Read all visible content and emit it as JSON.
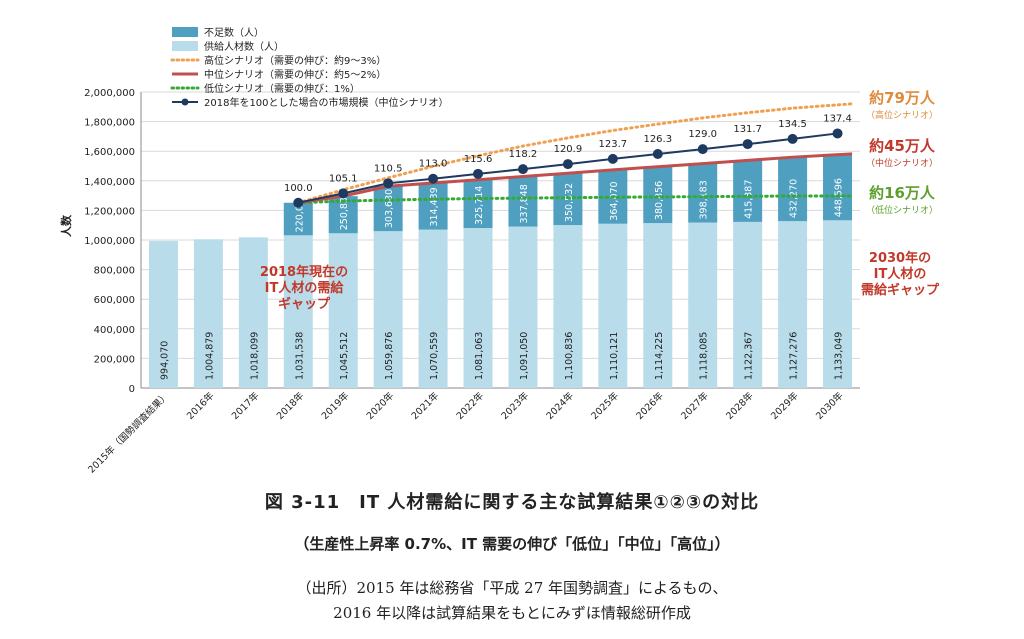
{
  "chart_data": {
    "type": "bar",
    "ylabel": "人数",
    "ylim": [
      0,
      2000000
    ],
    "yticks": [
      "0",
      "200,000",
      "400,000",
      "600,000",
      "800,000",
      "1,000,000",
      "1,200,000",
      "1,400,000",
      "1,600,000",
      "1,800,000",
      "2,000,000"
    ],
    "categories": [
      "2015年（国勢調査結果）",
      "2016年",
      "2017年",
      "2018年",
      "2019年",
      "2020年",
      "2021年",
      "2022年",
      "2023年",
      "2024年",
      "2025年",
      "2026年",
      "2027年",
      "2028年",
      "2029年",
      "2030年"
    ],
    "series": [
      {
        "name": "不足数（人）",
        "kind": "stacked-bar",
        "color": "#4f9fc0",
        "values": [
          null,
          null,
          null,
          220000,
          250835,
          303680,
          314439,
          325714,
          337848,
          350532,
          364070,
          380856,
          398183,
          415387,
          432270,
          448596
        ],
        "labels": [
          "",
          "",
          "",
          "220,000",
          "250,835",
          "303,680",
          "314,439",
          "325,714",
          "337,848",
          "350,532",
          "364,070",
          "380,856",
          "398,183",
          "415,387",
          "432,270",
          "448,596"
        ]
      },
      {
        "name": "供給人材数（人）",
        "kind": "stacked-bar",
        "color": "#b8dcea",
        "values": [
          994070,
          1004879,
          1018099,
          1031538,
          1045512,
          1059876,
          1070559,
          1081063,
          1091050,
          1100836,
          1110121,
          1114225,
          1118085,
          1122367,
          1127276,
          1133049
        ],
        "labels": [
          "994,070",
          "1,004,879",
          "1,018,099",
          "1,031,538",
          "1,045,512",
          "1,059,876",
          "1,070,559",
          "1,081,063",
          "1,091,050",
          "1,100,836",
          "1,110,121",
          "1,114,225",
          "1,118,085",
          "1,122,367",
          "1,127,276",
          "1,133,049"
        ]
      },
      {
        "name": "高位シナリオ（需要の伸び：約9～3%）",
        "kind": "line",
        "style": "dotted",
        "color": "#f0a050",
        "values": [
          null,
          null,
          null,
          1251538,
          1339000,
          1420000,
          1498000,
          1569000,
          1635000,
          1690000,
          1740000,
          1783000,
          1825000,
          1860000,
          1891000,
          1920000
        ]
      },
      {
        "name": "中位シナリオ（需要の伸び：約5～2%）",
        "kind": "line",
        "style": "solid",
        "color": "#c0504d",
        "values": [
          null,
          null,
          null,
          1251538,
          1296347,
          1363556,
          1384998,
          1406777,
          1428898,
          1451368,
          1474191,
          1495081,
          1516268,
          1537754,
          1559546,
          1581645
        ]
      },
      {
        "name": "低位シナリオ（需要の伸び：1%）",
        "kind": "line",
        "style": "dotted",
        "color": "#33aa33",
        "values": [
          null,
          null,
          null,
          1251538,
          1263000,
          1270000,
          1276000,
          1280000,
          1283000,
          1286000,
          1289000,
          1291000,
          1293000,
          1295000,
          1297000,
          1298000
        ]
      },
      {
        "name": "2018年を100とした場合の市場規模（中位シナリオ）",
        "kind": "line-marker",
        "color": "#1f3a60",
        "index_labels": [
          "",
          "",
          "",
          "100.0",
          "105.1",
          "110.5",
          "113.0",
          "115.6",
          "118.2",
          "120.9",
          "123.7",
          "126.3",
          "129.0",
          "131.7",
          "134.5",
          "137.4"
        ],
        "values": [
          null,
          null,
          null,
          1251538,
          1315000,
          1383000,
          1414000,
          1447000,
          1479000,
          1513000,
          1548000,
          1581000,
          1614000,
          1648000,
          1683000,
          1720000
        ]
      }
    ],
    "annotations": [
      {
        "id": "high",
        "lines": [
          "約79万人",
          "（高位シナリオ）"
        ],
        "color": "#e08a3c"
      },
      {
        "id": "mid",
        "lines": [
          "約45万人",
          "（中位シナリオ）"
        ],
        "color": "#c0392b"
      },
      {
        "id": "low",
        "lines": [
          "約16万人",
          "（低位シナリオ）"
        ],
        "color": "#5aa02c"
      },
      {
        "id": "gap2030",
        "lines": [
          "2030年の",
          "IT人材の",
          "需給ギャップ"
        ],
        "color": "#c0392b"
      },
      {
        "id": "gap2018",
        "lines": [
          "2018年現在の",
          "IT人材の需給",
          "ギャップ"
        ],
        "color": "#c0392b"
      }
    ],
    "legend_placement": "top-left"
  },
  "caption": {
    "title": "図 3-11　IT 人材需給に関する主な試算結果①②③の対比",
    "subtitle": "（生産性上昇率 0.7%、IT 需要の伸び「低位」「中位」「高位」）",
    "source_line1": "（出所）2015 年は総務省「平成 27 年国勢調査」によるもの、",
    "source_line2": "2016 年以降は試算結果をもとにみずほ情報総研作成"
  }
}
